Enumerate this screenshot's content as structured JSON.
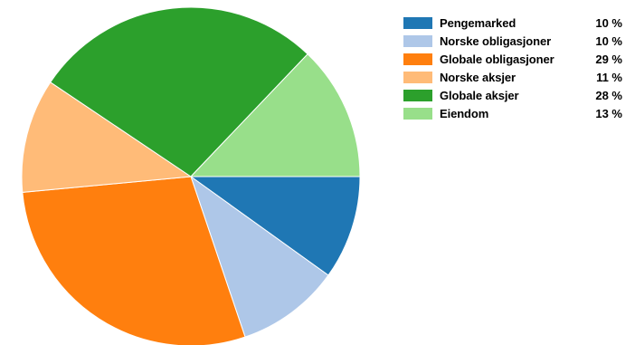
{
  "chart_data": {
    "type": "pie",
    "title": "",
    "legend_position": "right",
    "start_angle_deg": 0,
    "direction": "clockwise",
    "slices": [
      {
        "label": "Pengemarked",
        "value": 10,
        "display": "10 %",
        "color": "#1f77b4"
      },
      {
        "label": "Norske obligasjoner",
        "value": 10,
        "display": "10 %",
        "color": "#aec7e8"
      },
      {
        "label": "Globale obligasjoner",
        "value": 29,
        "display": "29 %",
        "color": "#ff7f0e"
      },
      {
        "label": "Norske aksjer",
        "value": 11,
        "display": "11 %",
        "color": "#ffbb78"
      },
      {
        "label": "Globale aksjer",
        "value": 28,
        "display": "28 %",
        "color": "#2ca02c"
      },
      {
        "label": "Eiendom",
        "value": 13,
        "display": "13 %",
        "color": "#98df8a"
      }
    ]
  }
}
